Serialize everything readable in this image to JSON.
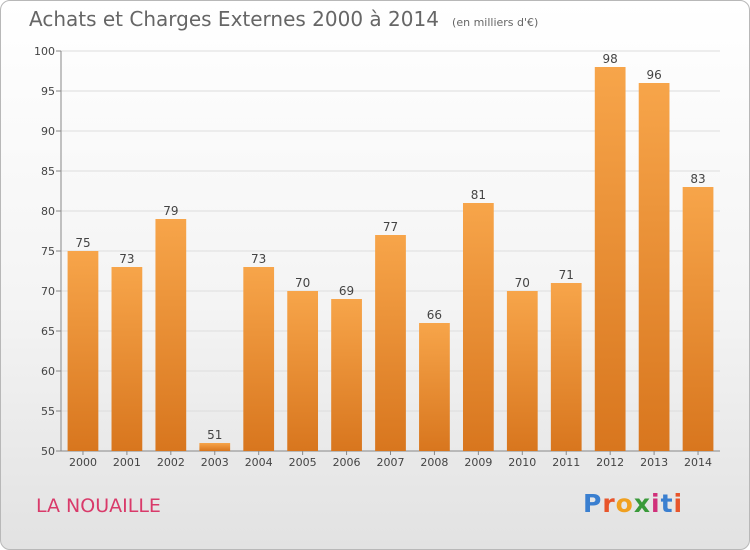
{
  "header": {
    "title": "Achats et Charges Externes 2000 à 2014",
    "subtitle": "(en milliers d'€)"
  },
  "footer": {
    "city": "LA NOUAILLE",
    "logo_letters": [
      "P",
      "r",
      "o",
      "x",
      "i",
      "t",
      "i"
    ],
    "logo_colors": [
      "#3a7fd0",
      "#e8552b",
      "#f0a020",
      "#3a9a3a",
      "#d0307a",
      "#3a7fd0",
      "#e8552b"
    ]
  },
  "chart_data": {
    "type": "bar",
    "title": "Achats et Charges Externes 2000 à 2014",
    "subtitle": "(en milliers d'€)",
    "xlabel": "",
    "ylabel": "",
    "categories": [
      "2000",
      "2001",
      "2002",
      "2003",
      "2004",
      "2005",
      "2006",
      "2007",
      "2008",
      "2009",
      "2010",
      "2011",
      "2012",
      "2013",
      "2014"
    ],
    "values": [
      75,
      73,
      79,
      51,
      73,
      70,
      69,
      77,
      66,
      81,
      70,
      71,
      98,
      96,
      83
    ],
    "ylim": [
      50,
      100
    ],
    "yticks": [
      50,
      55,
      60,
      65,
      70,
      75,
      80,
      85,
      90,
      95,
      100
    ],
    "grid": true,
    "colors": {
      "bar_light": "#f7a54a",
      "bar_dark": "#d8761e",
      "grid": "#dddddd"
    }
  }
}
